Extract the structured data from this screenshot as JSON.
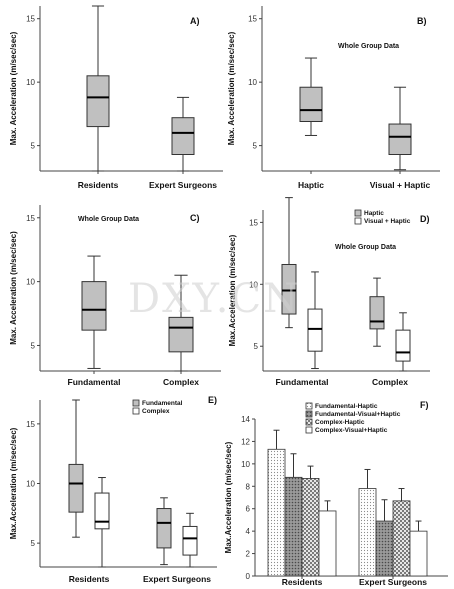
{
  "watermark": "DXY.CN",
  "chart_data": [
    {
      "type": "box",
      "panel_label": "A)",
      "ylabel": "Max. Acceleration (m/sec/sec)",
      "ylim": [
        3,
        16
      ],
      "yticks": [
        5,
        10,
        15
      ],
      "categories": [
        "Residents",
        "Expert Surgeons"
      ],
      "boxes": [
        {
          "fill": "#c0c0c0",
          "min": 3,
          "q1": 6.5,
          "median": 8.8,
          "q3": 10.5,
          "max": 16
        },
        {
          "fill": "#c0c0c0",
          "min": 3,
          "q1": 4.3,
          "median": 6.0,
          "q3": 7.2,
          "max": 8.8
        }
      ]
    },
    {
      "type": "box",
      "panel_label": "B)",
      "annotation": "Whole Group Data",
      "ylabel": "Max. Acceleration (m/sec/sec)",
      "ylim": [
        3,
        16
      ],
      "yticks": [
        5,
        10,
        15
      ],
      "categories": [
        "Haptic",
        "Visual + Haptic"
      ],
      "boxes": [
        {
          "fill": "#c0c0c0",
          "min": 5.8,
          "q1": 6.9,
          "median": 7.8,
          "q3": 9.6,
          "max": 11.9
        },
        {
          "fill": "#c0c0c0",
          "min": 3.1,
          "q1": 4.3,
          "median": 5.7,
          "q3": 6.7,
          "max": 9.6
        }
      ]
    },
    {
      "type": "box",
      "panel_label": "C)",
      "annotation": "Whole Group Data",
      "ylabel": "Max. Acceleration (m/sec/sec)",
      "ylim": [
        3,
        16
      ],
      "yticks": [
        5,
        10,
        15
      ],
      "categories": [
        "Fundamental",
        "Complex"
      ],
      "boxes": [
        {
          "fill": "#c0c0c0",
          "min": 3.2,
          "q1": 6.2,
          "median": 7.8,
          "q3": 10.0,
          "max": 12.0
        },
        {
          "fill": "#c0c0c0",
          "min": 3.0,
          "q1": 4.5,
          "median": 6.4,
          "q3": 7.2,
          "max": 10.5
        }
      ]
    },
    {
      "type": "box",
      "panel_label": "D)",
      "annotation": "Whole Group Data",
      "ylabel": "Max.Acceleration (m/sec/sec)",
      "ylim": [
        3,
        16
      ],
      "yticks": [
        5,
        10,
        15
      ],
      "categories": [
        "Fundamental",
        "Complex"
      ],
      "legend": [
        {
          "name": "Haptic",
          "fill": "#c0c0c0"
        },
        {
          "name": "Visual + Haptic",
          "fill": "#ffffff"
        }
      ],
      "boxes": [
        {
          "category": 0,
          "series": 0,
          "fill": "#c0c0c0",
          "min": 6.5,
          "q1": 7.6,
          "median": 9.5,
          "q3": 11.6,
          "max": 17.0
        },
        {
          "category": 0,
          "series": 1,
          "fill": "#ffffff",
          "min": 3.2,
          "q1": 4.6,
          "median": 6.4,
          "q3": 8.0,
          "max": 11.0
        },
        {
          "category": 1,
          "series": 0,
          "fill": "#c0c0c0",
          "min": 5.0,
          "q1": 6.4,
          "median": 7.0,
          "q3": 9.0,
          "max": 10.5
        },
        {
          "category": 1,
          "series": 1,
          "fill": "#ffffff",
          "min": 3.0,
          "q1": 3.8,
          "median": 4.5,
          "q3": 6.3,
          "max": 7.7
        }
      ]
    },
    {
      "type": "box",
      "panel_label": "E)",
      "ylabel": "Max.Acceleration (m/sec/sec)",
      "ylim": [
        3,
        17
      ],
      "yticks": [
        5,
        10,
        15
      ],
      "categories": [
        "Residents",
        "Expert Surgeons"
      ],
      "legend": [
        {
          "name": "Fundamental",
          "fill": "#c0c0c0"
        },
        {
          "name": "Complex",
          "fill": "#ffffff"
        }
      ],
      "boxes": [
        {
          "category": 0,
          "series": 0,
          "fill": "#c0c0c0",
          "min": 5.5,
          "q1": 7.6,
          "median": 10.0,
          "q3": 11.6,
          "max": 17.0
        },
        {
          "category": 0,
          "series": 1,
          "fill": "#ffffff",
          "min": 3.0,
          "q1": 6.2,
          "median": 6.8,
          "q3": 9.2,
          "max": 10.5
        },
        {
          "category": 1,
          "series": 0,
          "fill": "#c0c0c0",
          "min": 3.2,
          "q1": 4.6,
          "median": 6.7,
          "q3": 7.9,
          "max": 8.8
        },
        {
          "category": 1,
          "series": 1,
          "fill": "#ffffff",
          "min": 3.0,
          "q1": 4.0,
          "median": 5.4,
          "q3": 6.4,
          "max": 7.5
        }
      ]
    },
    {
      "type": "bar",
      "panel_label": "F)",
      "ylabel": "Max.Acceleration (m/sec/sec)",
      "ylim": [
        0,
        14
      ],
      "yticks": [
        0,
        2,
        4,
        6,
        8,
        10,
        12,
        14
      ],
      "categories": [
        "Residents",
        "Expert Surgeons"
      ],
      "series": [
        {
          "name": "Fundamental-Haptic",
          "pattern": "dots-light",
          "values": [
            11.3,
            7.8
          ],
          "errors": [
            1.7,
            1.7
          ]
        },
        {
          "name": "Fundamental-Visual+Haptic",
          "pattern": "dots-dark",
          "values": [
            8.8,
            4.9
          ],
          "errors": [
            2.1,
            1.9
          ]
        },
        {
          "name": "Complex-Haptic",
          "pattern": "checker",
          "values": [
            8.7,
            6.7
          ],
          "errors": [
            1.1,
            1.1
          ]
        },
        {
          "name": "Complex-Visual+Haptic",
          "pattern": "white",
          "values": [
            5.8,
            4.0
          ],
          "errors": [
            0.9,
            0.9
          ]
        }
      ]
    }
  ]
}
